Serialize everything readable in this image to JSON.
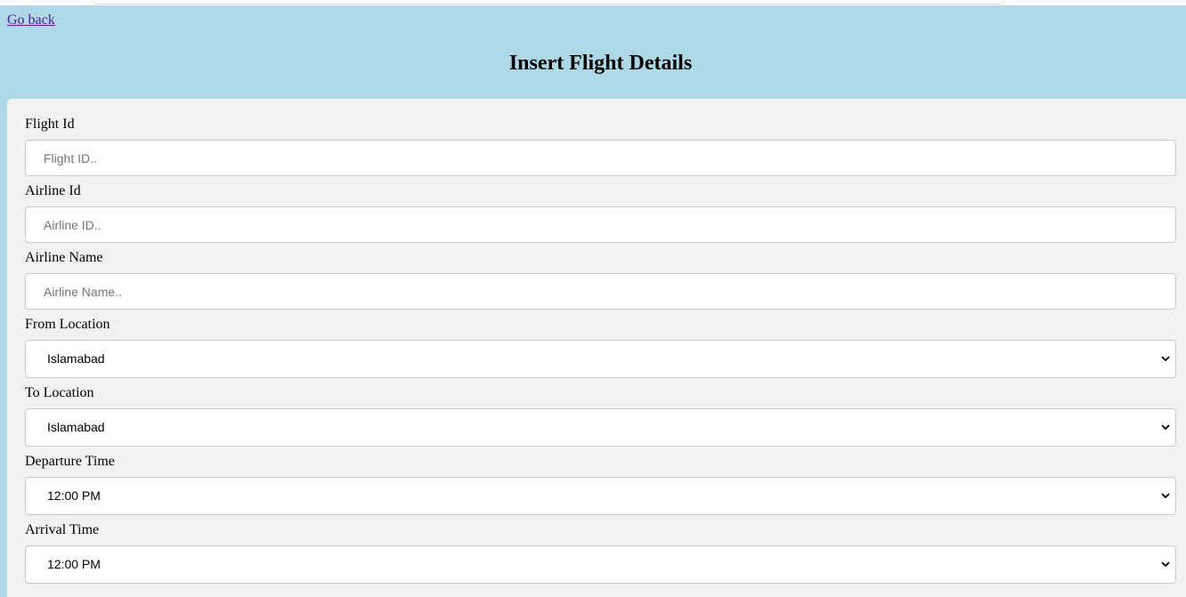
{
  "nav": {
    "go_back_label": "Go back"
  },
  "header": {
    "title": "Insert Flight Details"
  },
  "form": {
    "flight_id": {
      "label": "Flight Id",
      "placeholder": "Flight ID..",
      "value": ""
    },
    "airline_id": {
      "label": "Airline Id",
      "placeholder": "Airline ID..",
      "value": ""
    },
    "airline_name": {
      "label": "Airline Name",
      "placeholder": "Airline Name..",
      "value": ""
    },
    "from_location": {
      "label": "From Location",
      "selected": "Islamabad"
    },
    "to_location": {
      "label": "To Location",
      "selected": "Islamabad"
    },
    "departure_time": {
      "label": "Departure Time",
      "selected": "12:00 PM"
    },
    "arrival_time": {
      "label": "Arrival Time",
      "selected": "12:00 PM"
    }
  },
  "icons": {
    "select_arrow": "chevron-down-icon"
  },
  "colors": {
    "page_background": "#add8e6",
    "panel_background": "#f2f2f2",
    "link_visited": "#551a8b",
    "input_border": "#cccccc"
  }
}
